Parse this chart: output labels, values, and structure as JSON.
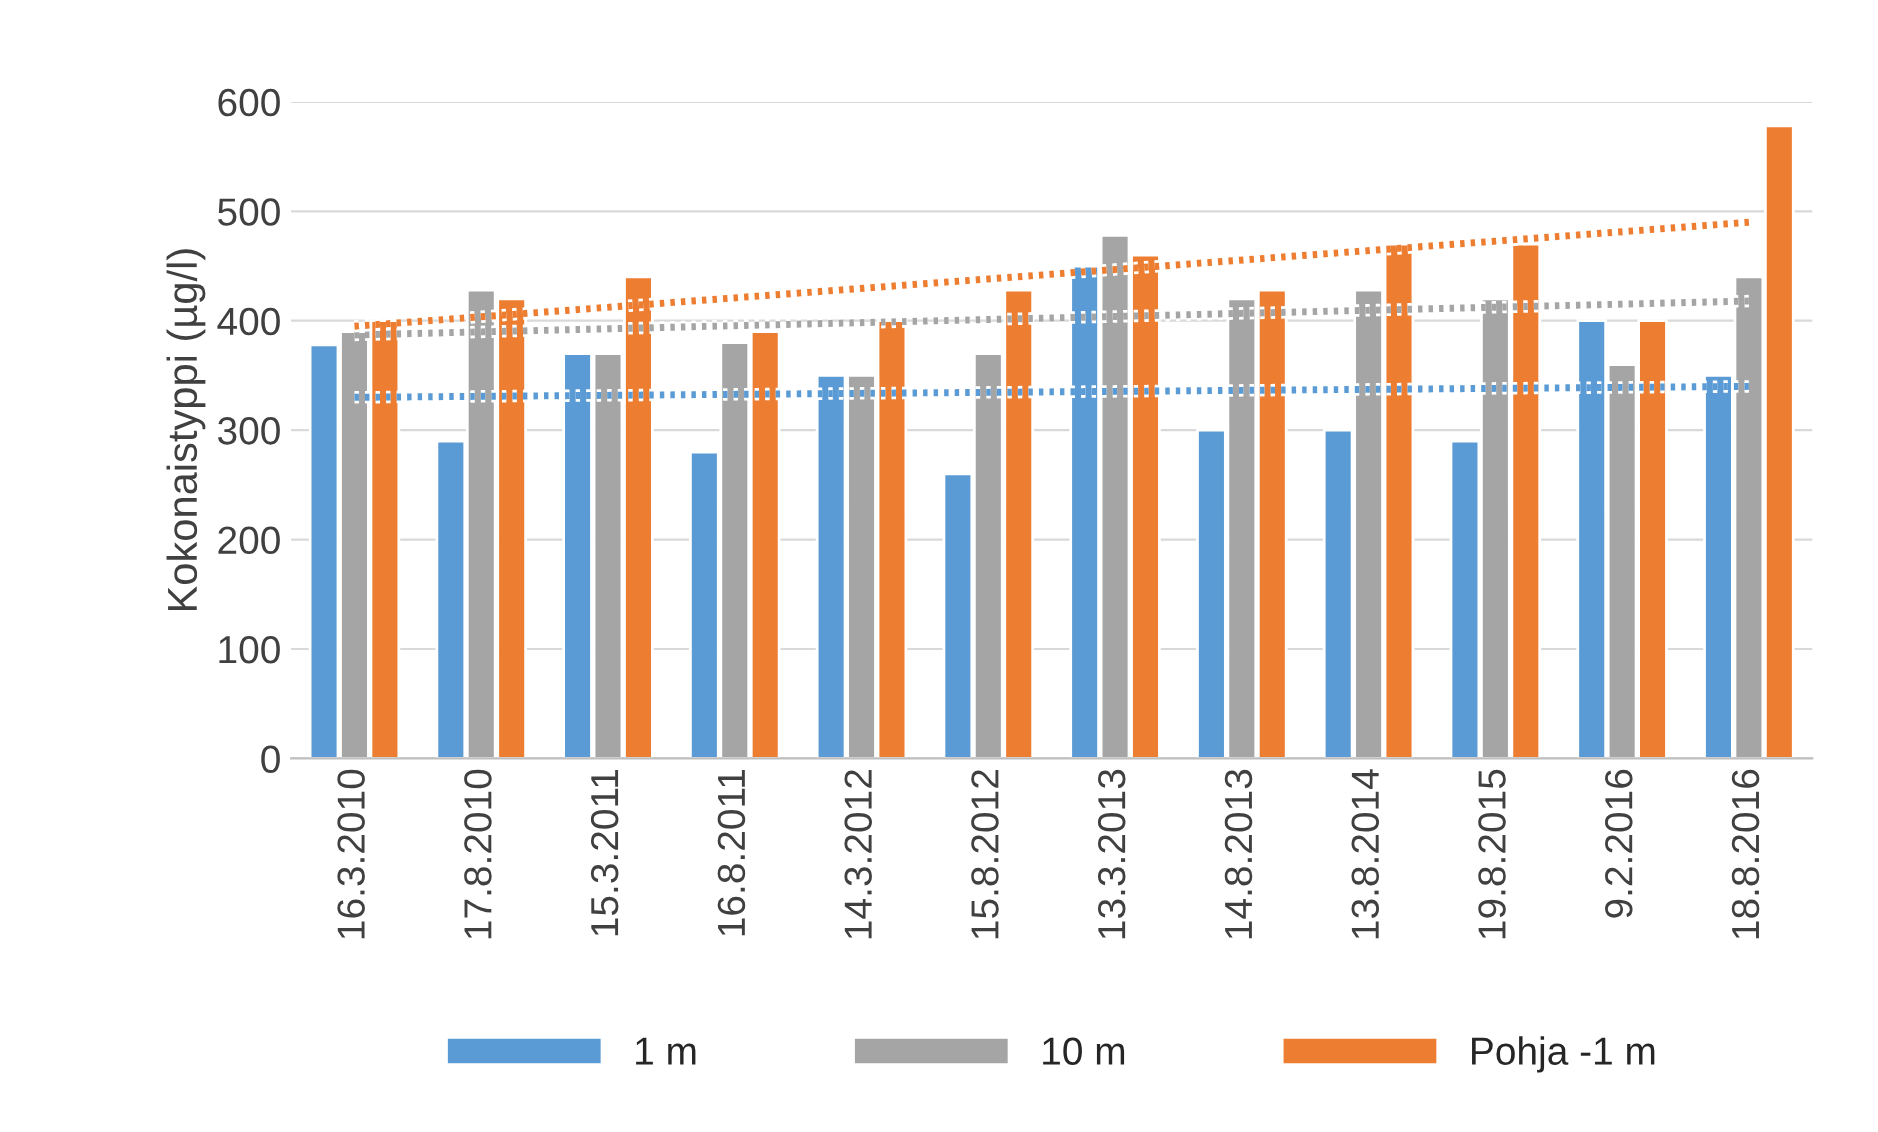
{
  "chart_data": {
    "type": "bar",
    "ylabel": "Kokonaistyppi (µg/l)",
    "categories": [
      "16.3.2010",
      "17.8.2010",
      "15.3.2011",
      "16.8.2011",
      "14.3.2012",
      "15.8.2012",
      "13.3.2013",
      "14.8.2013",
      "13.8.2014",
      "19.8.2015",
      "9.2.2016",
      "18.8.2016"
    ],
    "series": [
      {
        "name": "1 m",
        "color": "#5b9bd5",
        "values": [
          378,
          290,
          370,
          280,
          350,
          260,
          450,
          300,
          300,
          290,
          400,
          350
        ]
      },
      {
        "name": "10 m",
        "color": "#a5a5a5",
        "values": [
          390,
          428,
          370,
          380,
          350,
          370,
          478,
          420,
          428,
          420,
          360,
          440
        ]
      },
      {
        "name": "Pohja -1 m",
        "color": "#ed7d31",
        "values": [
          400,
          420,
          440,
          390,
          400,
          428,
          460,
          428,
          470,
          470,
          400,
          578
        ]
      },
      {
        "type": "line",
        "line_style": "dotted",
        "color": "#5b9bd5",
        "x": [
          "16.3.2010",
          "18.8.2016"
        ],
        "values": [
          330,
          340
        ]
      },
      {
        "type": "line",
        "line_style": "dotted",
        "color": "#a5a5a5",
        "x": [
          "16.3.2010",
          "18.8.2016"
        ],
        "values": [
          387,
          418
        ]
      },
      {
        "type": "line",
        "line_style": "dotted",
        "color": "#ed7d31",
        "x": [
          "16.3.2010",
          "18.8.2016"
        ],
        "values": [
          395,
          490
        ]
      }
    ],
    "ylim": [
      0,
      600
    ],
    "yticks": [
      0,
      100,
      200,
      300,
      400,
      500,
      600
    ],
    "grid": "y",
    "legend": "bottom"
  }
}
